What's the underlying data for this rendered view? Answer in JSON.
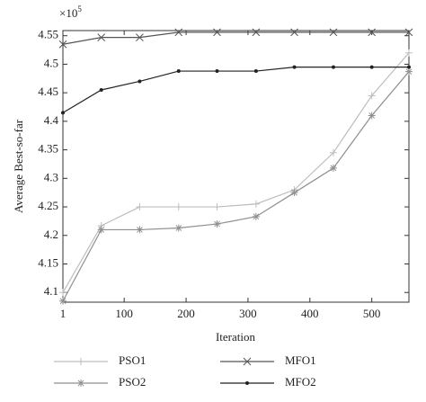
{
  "chart_data": {
    "type": "line",
    "y_multiplier": "×10",
    "y_multiplier_exp": "5",
    "xlabel": "Iteration",
    "ylabel": "Average Best-so-far",
    "x": [
      1,
      63,
      125,
      188,
      250,
      313,
      375,
      438,
      500,
      560
    ],
    "series": [
      {
        "name": "PSO1",
        "color": "#bdbdbd",
        "marker": "plus",
        "values": [
          4.1,
          4.217,
          4.25,
          4.25,
          4.25,
          4.255,
          4.28,
          4.345,
          4.445,
          4.52
        ]
      },
      {
        "name": "PSO2",
        "color": "#8f8f8f",
        "marker": "star",
        "values": [
          4.085,
          4.21,
          4.21,
          4.213,
          4.22,
          4.233,
          4.275,
          4.318,
          4.41,
          4.487
        ]
      },
      {
        "name": "MFO1",
        "color": "#555555",
        "marker": "cross",
        "values": [
          4.535,
          4.547,
          4.547,
          4.556,
          4.556,
          4.556,
          4.556,
          4.556,
          4.556,
          4.556
        ]
      },
      {
        "name": "MFO2",
        "color": "#222222",
        "marker": "dot",
        "values": [
          4.415,
          4.455,
          4.47,
          4.488,
          4.488,
          4.488,
          4.495,
          4.495,
          4.495,
          4.495
        ]
      }
    ],
    "xlim": [
      1,
      560
    ],
    "xticks": [
      1,
      100,
      200,
      300,
      400,
      500
    ],
    "ylim": [
      4.083,
      4.559
    ],
    "yticks": [
      4.1,
      4.15,
      4.2,
      4.25,
      4.3,
      4.35,
      4.4,
      4.45,
      4.5,
      4.55
    ],
    "legend": "bottom"
  }
}
